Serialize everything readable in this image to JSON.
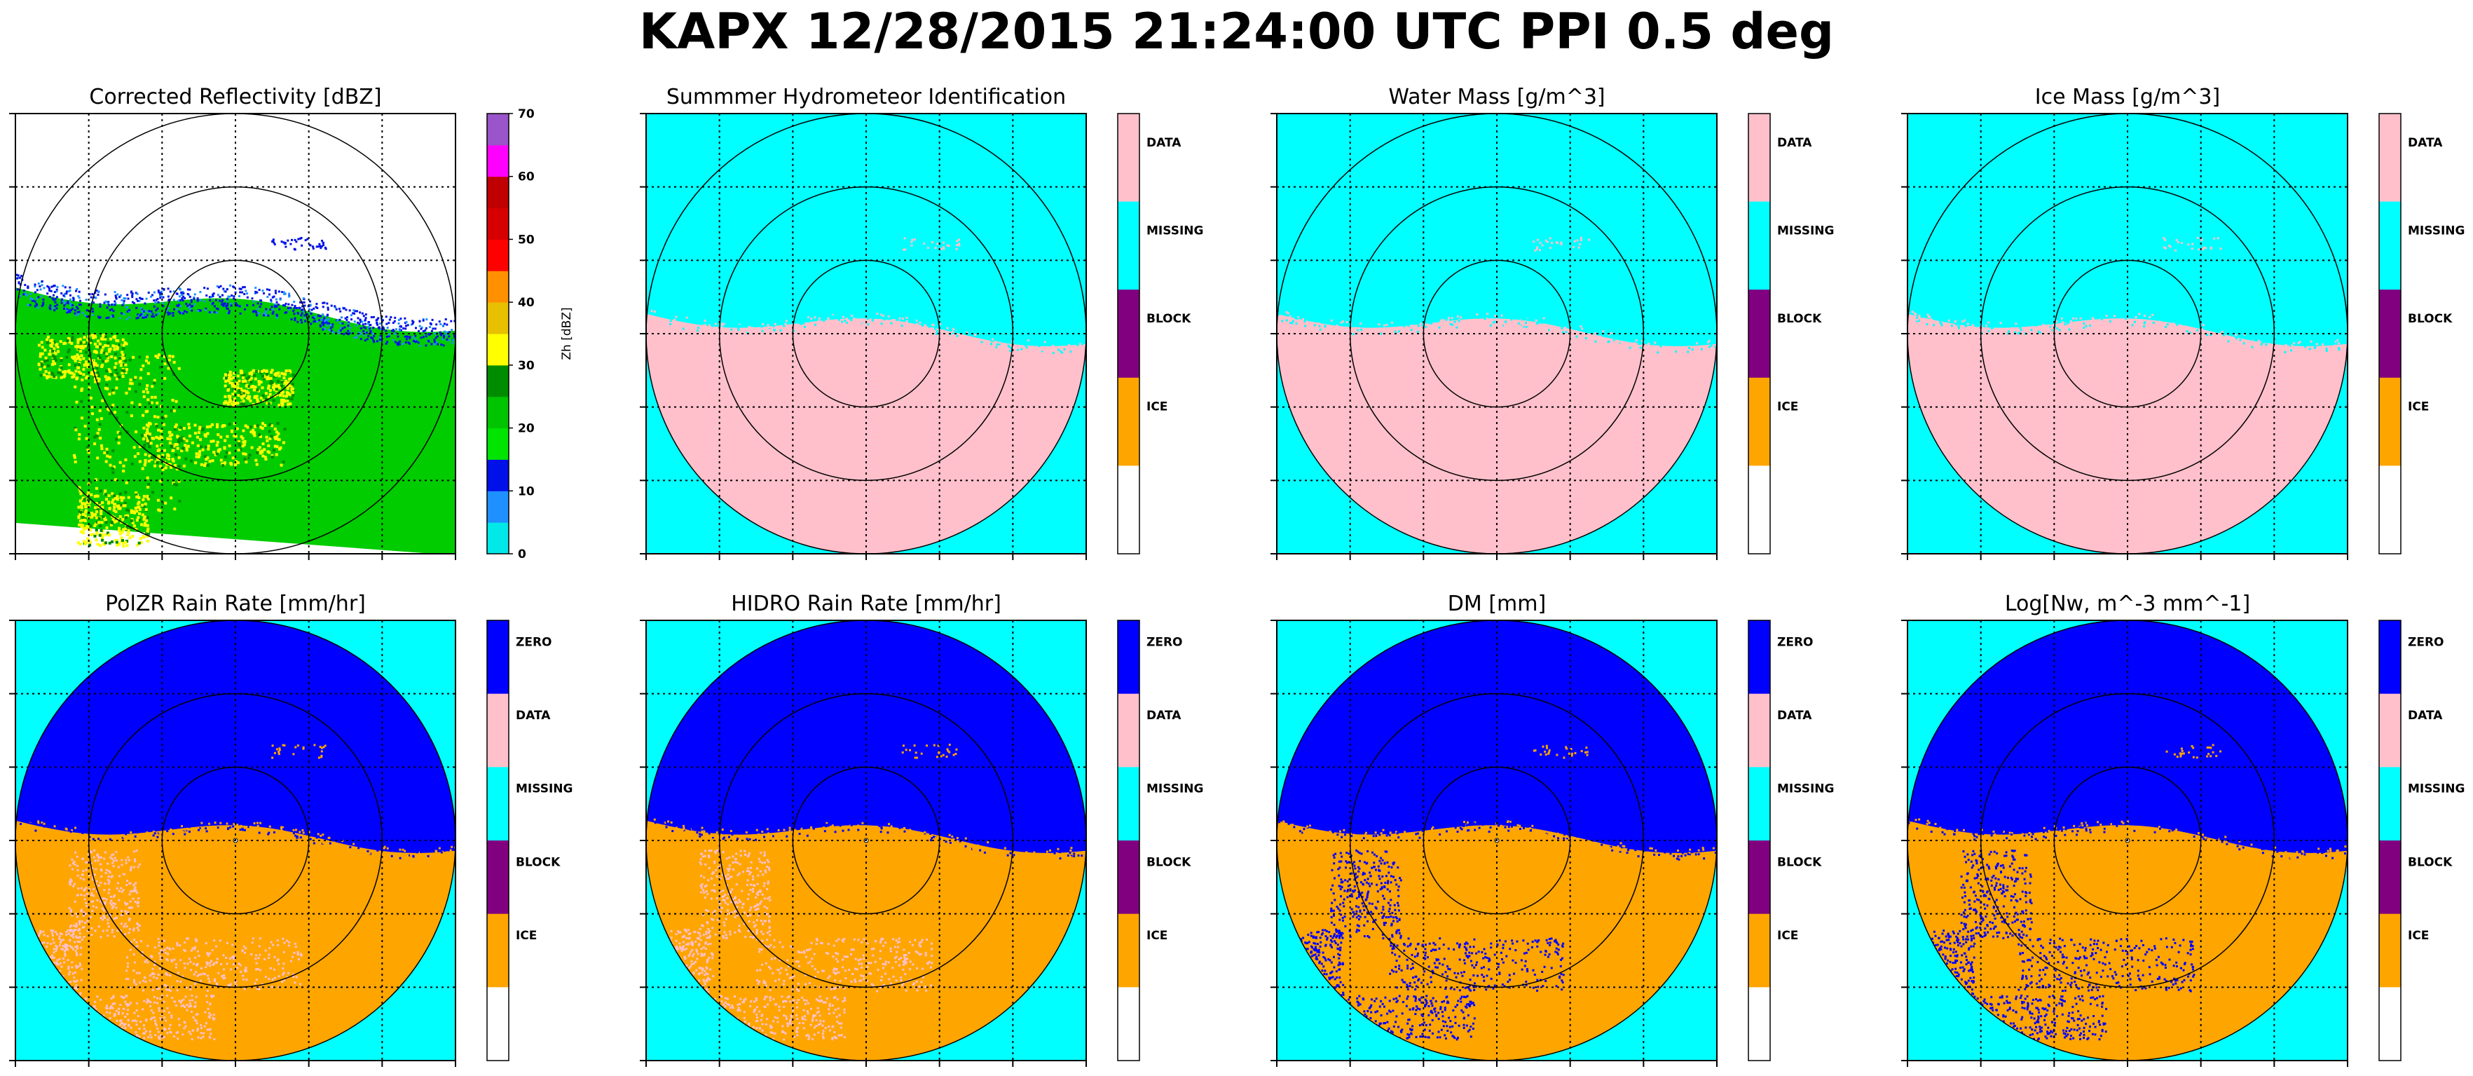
{
  "figure": {
    "title": "KAPX 12/28/2015 21:24:00 UTC PPI 0.5 deg"
  },
  "colors": {
    "cyan": "#00ffff",
    "pink": "#ffc0cb",
    "purple": "#800080",
    "orange": "#ffa500",
    "blue": "#0000ff",
    "white": "#ffffff"
  },
  "chart_data": [
    {
      "type": "heatmap",
      "title": "Corrected Reflectivity [dBZ]",
      "colorbar_label": "Zh [dBZ]",
      "colorbar_kind": "continuous",
      "colorbar_ticks": [
        "0",
        "10",
        "20",
        "30",
        "40",
        "50",
        "60",
        "70"
      ],
      "colorbar_range": [
        0,
        70
      ],
      "colorbar_colors": [
        "#00e8e8",
        "#1e90ff",
        "#0010e8",
        "#00e400",
        "#00c400",
        "#008c00",
        "#ffff00",
        "#e7c000",
        "#ff9000",
        "#ff0000",
        "#d60000",
        "#c00000",
        "#ff00ff",
        "#9955c9"
      ],
      "range_rings": 3,
      "field": "reflectivity"
    },
    {
      "type": "heatmap",
      "title": "Summmer Hydrometeor Identification",
      "colorbar_kind": "categorical",
      "categories": [
        "DATA",
        "MISSING",
        "BLOCK",
        "ICE",
        ""
      ],
      "category_colors": [
        "#ffc0cb",
        "#00ffff",
        "#800080",
        "#ffa500",
        "#ffffff"
      ],
      "range_rings": 3,
      "field": "mask"
    },
    {
      "type": "heatmap",
      "title": "Water Mass [g/m^3]",
      "colorbar_kind": "categorical",
      "categories": [
        "DATA",
        "MISSING",
        "BLOCK",
        "ICE",
        ""
      ],
      "category_colors": [
        "#ffc0cb",
        "#00ffff",
        "#800080",
        "#ffa500",
        "#ffffff"
      ],
      "range_rings": 3,
      "field": "mask"
    },
    {
      "type": "heatmap",
      "title": "Ice Mass [g/m^3]",
      "colorbar_kind": "categorical",
      "categories": [
        "DATA",
        "MISSING",
        "BLOCK",
        "ICE",
        ""
      ],
      "category_colors": [
        "#ffc0cb",
        "#00ffff",
        "#800080",
        "#ffa500",
        "#ffffff"
      ],
      "range_rings": 3,
      "field": "mask"
    },
    {
      "type": "heatmap",
      "title": "PolZR Rain Rate [mm/hr]",
      "colorbar_kind": "categorical",
      "categories": [
        "ZERO",
        "DATA",
        "MISSING",
        "BLOCK",
        "ICE",
        ""
      ],
      "category_colors": [
        "#0000ff",
        "#ffc0cb",
        "#00ffff",
        "#800080",
        "#ffa500",
        "#ffffff"
      ],
      "range_rings": 3,
      "field": "rain-pink"
    },
    {
      "type": "heatmap",
      "title": "HIDRO Rain Rate [mm/hr]",
      "colorbar_kind": "categorical",
      "categories": [
        "ZERO",
        "DATA",
        "MISSING",
        "BLOCK",
        "ICE",
        ""
      ],
      "category_colors": [
        "#0000ff",
        "#ffc0cb",
        "#00ffff",
        "#800080",
        "#ffa500",
        "#ffffff"
      ],
      "range_rings": 3,
      "field": "rain-pink"
    },
    {
      "type": "heatmap",
      "title": "DM [mm]",
      "colorbar_kind": "categorical",
      "categories": [
        "ZERO",
        "DATA",
        "MISSING",
        "BLOCK",
        "ICE",
        ""
      ],
      "category_colors": [
        "#0000ff",
        "#ffc0cb",
        "#00ffff",
        "#800080",
        "#ffa500",
        "#ffffff"
      ],
      "range_rings": 3,
      "field": "rain-blue"
    },
    {
      "type": "heatmap",
      "title": "Log[Nw, m^-3 mm^-1]",
      "colorbar_kind": "categorical",
      "categories": [
        "ZERO",
        "DATA",
        "MISSING",
        "BLOCK",
        "ICE",
        ""
      ],
      "category_colors": [
        "#0000ff",
        "#ffc0cb",
        "#00ffff",
        "#800080",
        "#ffa500",
        "#ffffff"
      ],
      "range_rings": 3,
      "field": "rain-blue"
    }
  ]
}
